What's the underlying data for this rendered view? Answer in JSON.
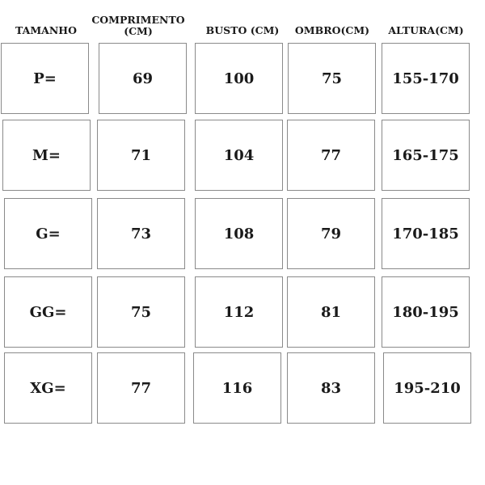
{
  "headers": [
    "TAMANHO",
    "COMPRIMENTO (CM)",
    "BUSTO (CM)",
    "OMBRO(CM)",
    "ALTURA(CM)"
  ],
  "rows": [
    [
      "P=",
      "69",
      "100",
      "75",
      "155-170"
    ],
    [
      "M=",
      "71",
      "104",
      "77",
      "165-175"
    ],
    [
      "G=",
      "73",
      "108",
      "79",
      "170-185"
    ],
    [
      "GG=",
      "75",
      "112",
      "81",
      "180-195"
    ],
    [
      "XG=",
      "77",
      "116",
      "83",
      "195-210"
    ]
  ]
}
